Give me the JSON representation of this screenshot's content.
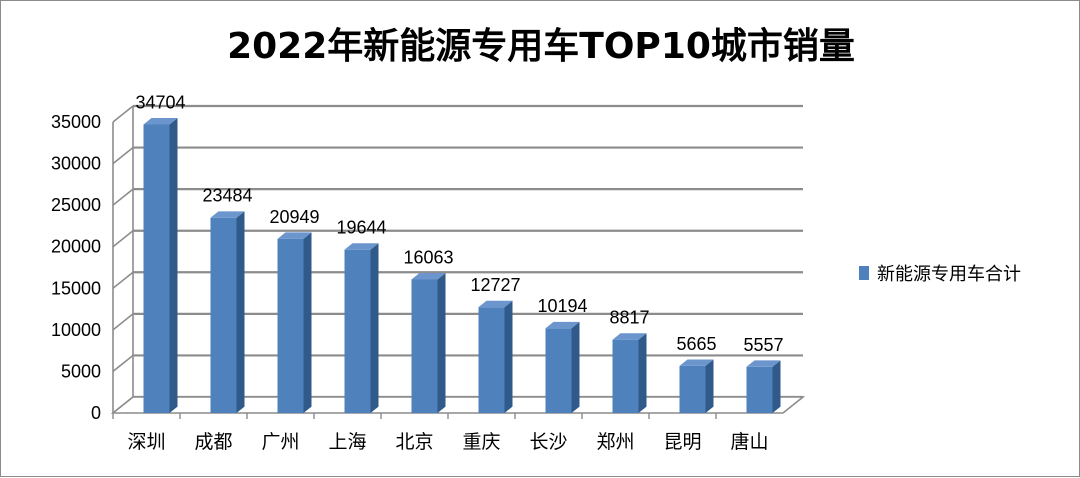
{
  "chart_data": {
    "type": "bar",
    "title": "2022年新能源专用车TOP10城市销量",
    "categories": [
      "深圳",
      "成都",
      "广州",
      "上海",
      "北京",
      "重庆",
      "长沙",
      "郑州",
      "昆明",
      "唐山"
    ],
    "series": [
      {
        "name": "新能源专用车合计",
        "values": [
          34704,
          23484,
          20949,
          19644,
          16063,
          12727,
          10194,
          8817,
          5665,
          5557
        ],
        "color": "#4f81bd"
      }
    ],
    "yticks": [
      "0",
      "5000",
      "10000",
      "15000",
      "20000",
      "25000",
      "30000",
      "35000"
    ],
    "ylim": [
      0,
      35000
    ],
    "grid": true,
    "legend": "right",
    "style": "3d-column"
  }
}
